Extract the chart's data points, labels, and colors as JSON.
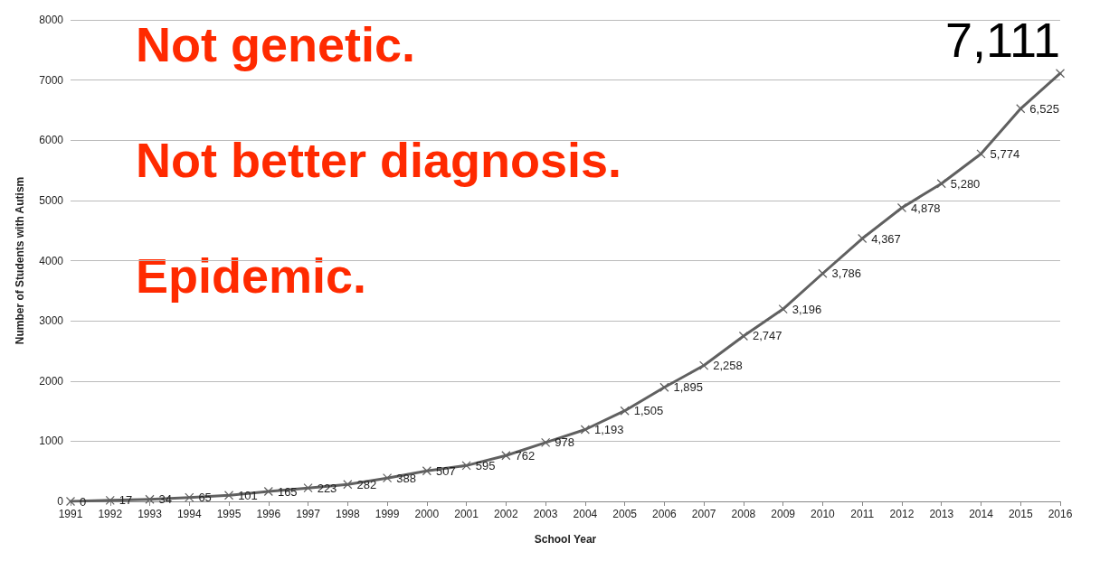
{
  "chart_data": {
    "type": "line",
    "xlabel": "School Year",
    "ylabel": "Number of Students with Autism",
    "categories": [
      "1991",
      "1992",
      "1993",
      "1994",
      "1995",
      "1996",
      "1997",
      "1998",
      "1999",
      "2000",
      "2001",
      "2002",
      "2003",
      "2004",
      "2005",
      "2006",
      "2007",
      "2008",
      "2009",
      "2010",
      "2011",
      "2012",
      "2013",
      "2014",
      "2015",
      "2016"
    ],
    "series": [
      {
        "color": "#606060",
        "values": [
          0,
          17,
          34,
          65,
          101,
          165,
          223,
          282,
          388,
          507,
          595,
          762,
          978,
          1193,
          1505,
          1895,
          2258,
          2747,
          3196,
          3786,
          4367,
          4878,
          5280,
          5774,
          6525,
          7111
        ],
        "value_labels": [
          "0",
          "17",
          "34",
          "65",
          "101",
          "165",
          "223",
          "282",
          "388",
          "507",
          "595",
          "762",
          "978",
          "1,193",
          "1,505",
          "1,895",
          "2,258",
          "2,747",
          "3,196",
          "3,786",
          "4,367",
          "4,878",
          "5,280",
          "5,774",
          "6,525",
          "7,111"
        ]
      }
    ],
    "ylim": [
      0,
      8000
    ],
    "yticks": [
      0,
      1000,
      2000,
      3000,
      4000,
      5000,
      6000,
      7000,
      8000
    ],
    "grid": "y",
    "marker": "cross",
    "line_style": "solid",
    "annotations": [
      "Not genetic.",
      "Not better diagnosis.",
      "Epidemic."
    ]
  }
}
